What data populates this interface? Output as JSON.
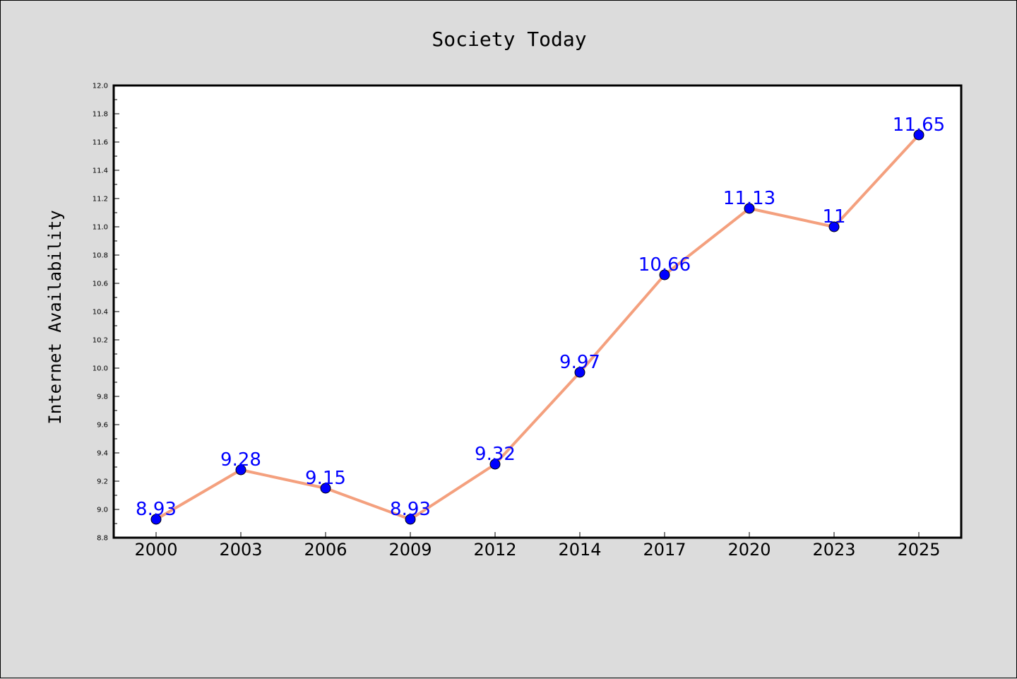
{
  "chart_data": {
    "type": "line",
    "title": "Society Today",
    "xlabel": "",
    "ylabel": "Internet Availability",
    "categories": [
      "2000",
      "2003",
      "2006",
      "2009",
      "2012",
      "2014",
      "2017",
      "2020",
      "2023",
      "2025"
    ],
    "series": [
      {
        "values": [
          8.93,
          9.28,
          9.15,
          8.93,
          9.32,
          9.97,
          10.66,
          11.13,
          11,
          11.65
        ],
        "labels": [
          "8.93",
          "9.28",
          "9.15",
          "8.93",
          "9.32",
          "9.97",
          "10.66",
          "11.13",
          "11",
          "11.65"
        ],
        "line_color": "#f4a07e",
        "marker_color": "#0000ff"
      }
    ],
    "yticks": [
      "8.8",
      "9.0",
      "9.2",
      "9.4",
      "9.6",
      "9.8",
      "10.0",
      "10.2",
      "10.4",
      "10.6",
      "10.8",
      "11.0",
      "11.2",
      "11.4",
      "11.6",
      "11.8",
      "12.0"
    ],
    "ylim": [
      8.8,
      12.0
    ],
    "grid": false,
    "legend": "none",
    "colors": {
      "background": "#dcdcdc",
      "plot_background": "#ffffff",
      "label_color": "#0000ff"
    }
  }
}
